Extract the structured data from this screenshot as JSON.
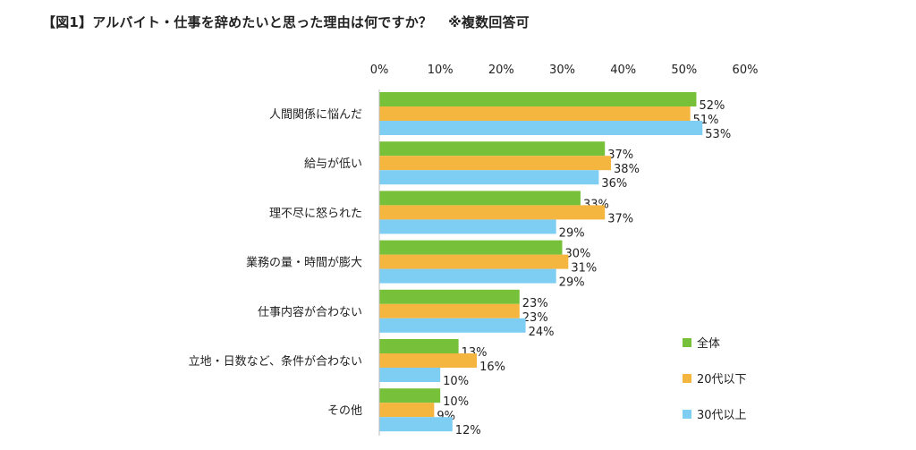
{
  "header": {
    "title": "【図1】アルバイト・仕事を辞めたいと思った理由は何ですか？",
    "note": "※複数回答可"
  },
  "chart_data": {
    "type": "bar",
    "orientation": "horizontal",
    "title": "【図1】アルバイト・仕事を辞めたいと思った理由は何ですか？ ※複数回答可",
    "categories": [
      "人間関係に悩んだ",
      "給与が低い",
      "理不尽に怒られた",
      "業務の量・時間が膨大",
      "仕事内容が合わない",
      "立地・日数など、条件が合わない",
      "その他"
    ],
    "series": [
      {
        "name": "全体",
        "color": "#77c13a",
        "values": [
          52,
          37,
          33,
          30,
          23,
          13,
          10
        ]
      },
      {
        "name": "20代以下",
        "color": "#f4b63f",
        "values": [
          51,
          38,
          37,
          31,
          23,
          16,
          9
        ]
      },
      {
        "name": "30代以上",
        "color": "#7ecdf3",
        "values": [
          53,
          36,
          29,
          29,
          24,
          10,
          12
        ]
      }
    ],
    "xlim": [
      0,
      60
    ],
    "xticks": [
      "0%",
      "10%",
      "20%",
      "30%",
      "40%",
      "50%",
      "60%"
    ],
    "value_suffix": "%",
    "axis_position": "top",
    "grid": false,
    "legend_position": "bottom-right"
  }
}
